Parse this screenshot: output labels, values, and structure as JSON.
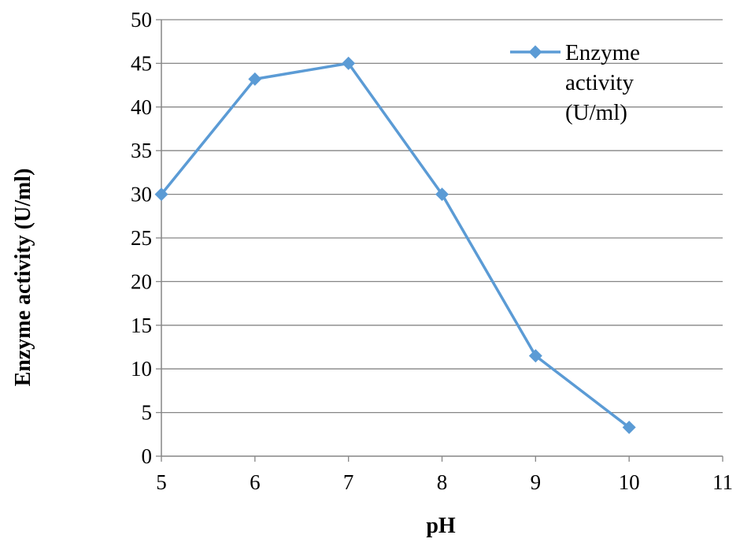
{
  "chart_data": {
    "type": "line",
    "title": "",
    "xlabel": "pH",
    "ylabel": "Enzyme activity (U/ml)",
    "xlim": [
      5,
      11
    ],
    "ylim": [
      0,
      50
    ],
    "x_ticks": [
      "5",
      "6",
      "7",
      "8",
      "9",
      "10",
      "11"
    ],
    "y_ticks": [
      "0",
      "5",
      "10",
      "15",
      "20",
      "25",
      "30",
      "35",
      "40",
      "45",
      "50"
    ],
    "grid": "horizontal",
    "legend_position": "top-right",
    "series": [
      {
        "name": "Enzyme activity (U/ml)",
        "legend_lines": [
          "Enzyme",
          "activity",
          "(U/ml)"
        ],
        "marker": "diamond",
        "color": "#5B9BD5",
        "x": [
          5,
          6,
          7,
          8,
          9,
          10
        ],
        "y": [
          30,
          43.2,
          45,
          30,
          11.5,
          3.3
        ]
      }
    ]
  }
}
